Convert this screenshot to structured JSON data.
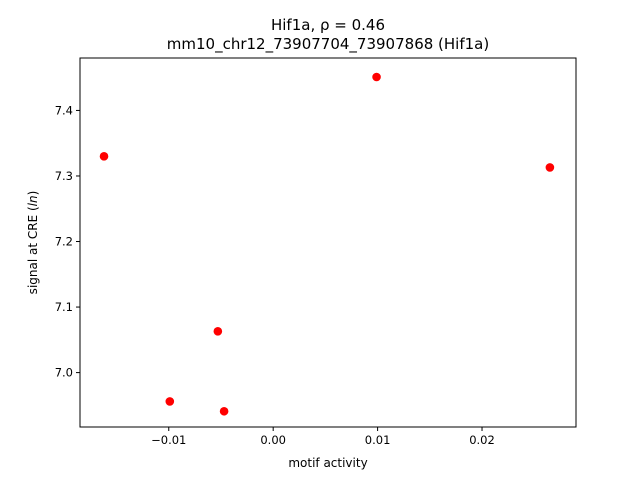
{
  "chart_data": {
    "type": "scatter",
    "title": "Hif1a, ρ = 0.46",
    "subtitle": "mm10_chr12_73907704_73907868 (Hif1a)",
    "xlabel": "motif activity",
    "ylabel_prefix": "signal at CRE (",
    "ylabel_italic": "ln",
    "ylabel_suffix": ")",
    "xlim": [
      -0.0185,
      0.029
    ],
    "ylim": [
      6.917,
      7.48
    ],
    "x_ticks": [
      -0.01,
      0.0,
      0.01,
      0.02
    ],
    "x_tick_labels": [
      "−0.01",
      "0.00",
      "0.01",
      "0.02"
    ],
    "y_ticks": [
      7.0,
      7.1,
      7.2,
      7.3,
      7.4
    ],
    "y_tick_labels": [
      "7.0",
      "7.1",
      "7.2",
      "7.3",
      "7.4"
    ],
    "grid": false,
    "series": [
      {
        "color": "#ff0000",
        "points": [
          {
            "x": -0.0162,
            "y": 7.33
          },
          {
            "x": -0.0099,
            "y": 6.956
          },
          {
            "x": -0.0053,
            "y": 7.063
          },
          {
            "x": -0.0047,
            "y": 6.941
          },
          {
            "x": 0.0099,
            "y": 7.451
          },
          {
            "x": 0.0265,
            "y": 7.313
          }
        ]
      }
    ]
  }
}
